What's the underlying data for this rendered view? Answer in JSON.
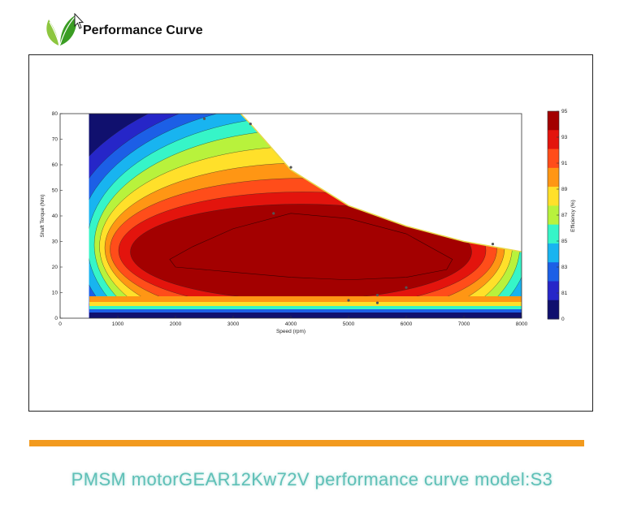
{
  "header": {
    "title": "Performance Curve",
    "logo_icon": "leaf-logo-icon",
    "cursor_icon": "mouse-pointer-icon"
  },
  "caption": "PMSM motorGEAR12Kw72V performance curve model:S3",
  "colors": {
    "divider": "#f29a1e",
    "caption": "#5fc0b7",
    "logo_light": "#8dc63f",
    "logo_dark": "#3a9d23"
  },
  "chart_data": {
    "type": "heatmap",
    "title": "",
    "xlabel": "Speed (rpm)",
    "ylabel": "Shaft Torque (Nm)",
    "colorbar_label": "Efficiency (%)",
    "xlim": [
      0,
      8000
    ],
    "ylim": [
      0,
      80
    ],
    "x_ticks": [
      0,
      1000,
      2000,
      3000,
      4000,
      5000,
      6000,
      7000,
      8000
    ],
    "y_ticks": [
      0,
      10,
      20,
      30,
      40,
      50,
      60,
      70,
      80
    ],
    "colorbar_ticks": [
      "95",
      "93",
      "91",
      "89",
      "87",
      "85",
      "83",
      "81",
      "0"
    ],
    "colorbar_colors": [
      "#a30000",
      "#e3140d",
      "#ff4d1a",
      "#ff9614",
      "#ffe02a",
      "#b8f23c",
      "#36f5c8",
      "#18b4f0",
      "#1c5fe6",
      "#2626c8",
      "#10106e"
    ],
    "torque_envelope": {
      "speed": [
        0,
        2000,
        3000,
        3300,
        4000,
        5000,
        6000,
        7000,
        8000
      ],
      "torque": [
        84,
        84,
        83,
        76,
        58,
        44,
        36,
        30,
        26
      ]
    },
    "max_efficiency_region": {
      "speed": [
        1900,
        2300,
        3000,
        4000,
        5000,
        6000,
        6800,
        6700,
        6000,
        5000,
        4000,
        3000,
        2000
      ],
      "torque": [
        23,
        28,
        35,
        41,
        39,
        33,
        23,
        19,
        16,
        15,
        16,
        18,
        20
      ]
    },
    "points": [
      {
        "x": 2500,
        "y": 78
      },
      {
        "x": 3300,
        "y": 76
      },
      {
        "x": 4000,
        "y": 59
      },
      {
        "x": 7500,
        "y": 29
      },
      {
        "x": 6000,
        "y": 12
      },
      {
        "x": 5500,
        "y": 9
      },
      {
        "x": 5500,
        "y": 6
      },
      {
        "x": 5000,
        "y": 7
      },
      {
        "x": 3700,
        "y": 41
      }
    ]
  }
}
